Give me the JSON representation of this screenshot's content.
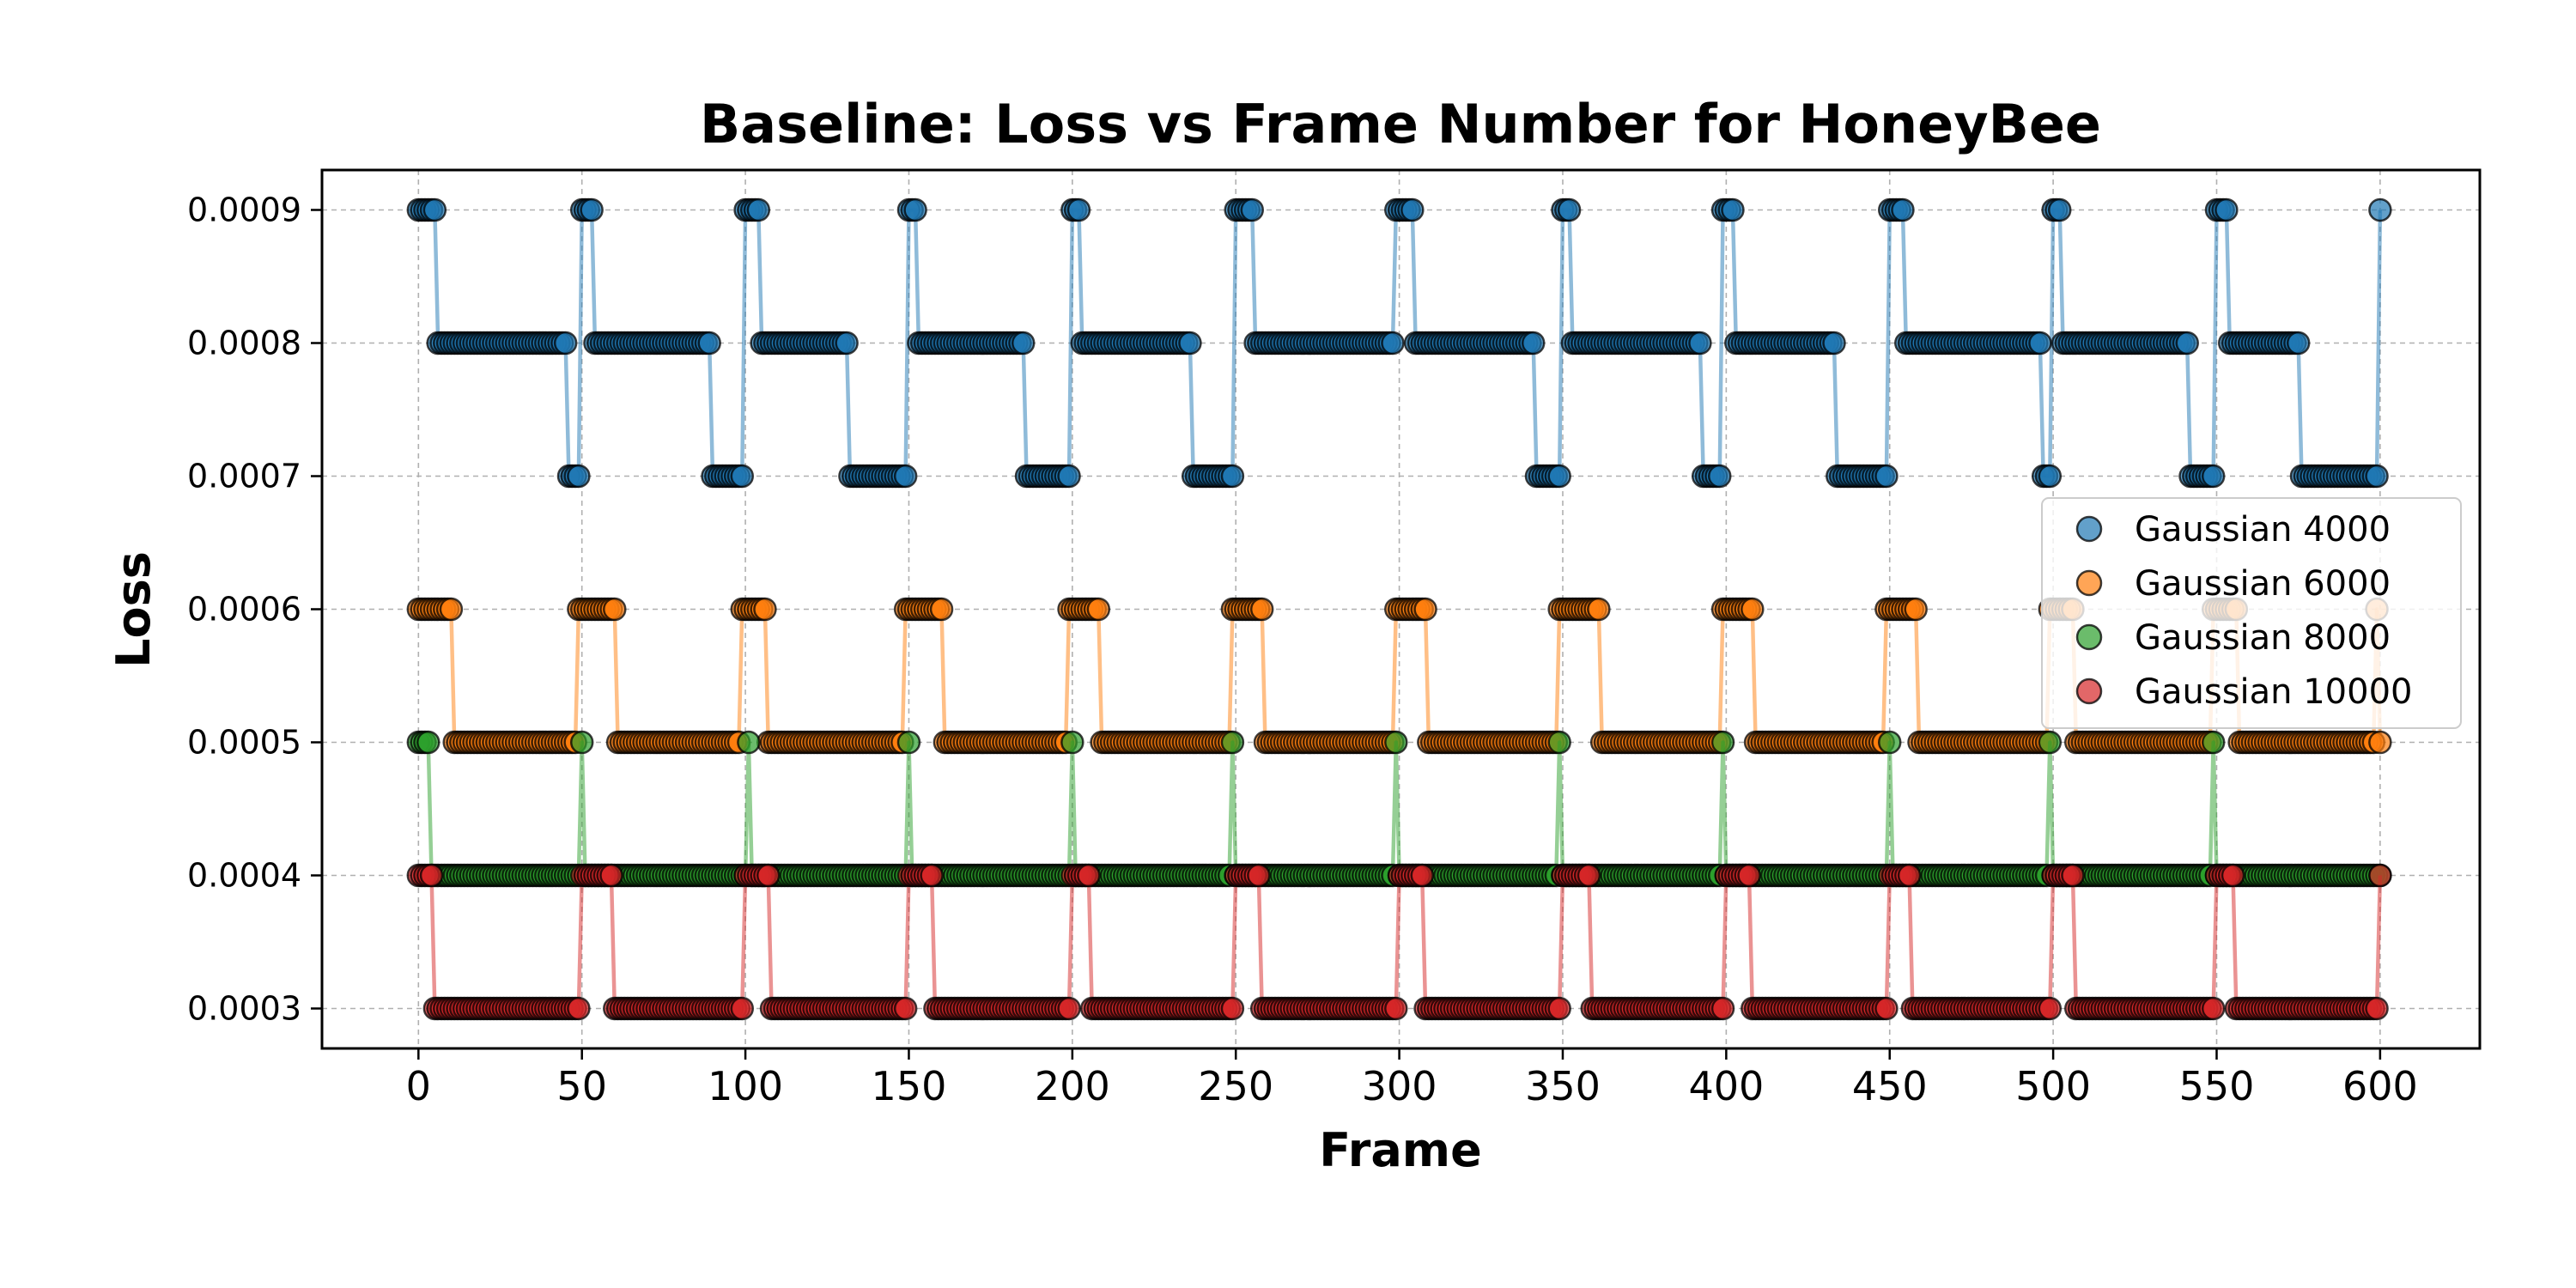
{
  "chart_data": {
    "type": "scatter",
    "title": "Baseline: Loss vs Frame Number for HoneyBee",
    "xlabel": "Frame",
    "ylabel": "Loss",
    "xlim": [
      -29.5,
      630.5
    ],
    "ylim": [
      0.00027,
      0.00093
    ],
    "xticks": [
      0,
      50,
      100,
      150,
      200,
      250,
      300,
      350,
      400,
      450,
      500,
      550,
      600
    ],
    "yticks": [
      0.0003,
      0.0004,
      0.0005,
      0.0006,
      0.0007,
      0.0008,
      0.0009
    ],
    "ytick_labels": [
      "0.0003",
      "0.0004",
      "0.0005",
      "0.0006",
      "0.0007",
      "0.0008",
      "0.0009"
    ],
    "grid": true,
    "legend_position": "center-right",
    "series": [
      {
        "name": "Gaussian 4000",
        "color": "#1f77b4",
        "segments": [
          [
            0,
            5,
            0.0009
          ],
          [
            6,
            45,
            0.0008
          ],
          [
            46,
            49,
            0.0007
          ],
          [
            50,
            53,
            0.0009
          ],
          [
            54,
            89,
            0.0008
          ],
          [
            90,
            99,
            0.0007
          ],
          [
            100,
            104,
            0.0009
          ],
          [
            105,
            131,
            0.0008
          ],
          [
            132,
            149,
            0.0007
          ],
          [
            150,
            152,
            0.0009
          ],
          [
            153,
            185,
            0.0008
          ],
          [
            186,
            199,
            0.0007
          ],
          [
            200,
            202,
            0.0009
          ],
          [
            203,
            236,
            0.0008
          ],
          [
            237,
            249,
            0.0007
          ],
          [
            250,
            255,
            0.0009
          ],
          [
            256,
            298,
            0.0008
          ],
          [
            299,
            304,
            0.0009
          ],
          [
            305,
            341,
            0.0008
          ],
          [
            342,
            349,
            0.0007
          ],
          [
            350,
            352,
            0.0009
          ],
          [
            353,
            392,
            0.0008
          ],
          [
            393,
            398,
            0.0007
          ],
          [
            399,
            402,
            0.0009
          ],
          [
            403,
            433,
            0.0008
          ],
          [
            434,
            449,
            0.0007
          ],
          [
            450,
            454,
            0.0009
          ],
          [
            455,
            496,
            0.0008
          ],
          [
            497,
            499,
            0.0007
          ],
          [
            500,
            502,
            0.0009
          ],
          [
            503,
            541,
            0.0008
          ],
          [
            542,
            549,
            0.0007
          ],
          [
            550,
            553,
            0.0009
          ],
          [
            554,
            575,
            0.0008
          ],
          [
            576,
            599,
            0.0007
          ],
          [
            600,
            600,
            0.0009
          ]
        ]
      },
      {
        "name": "Gaussian 6000",
        "color": "#ff7f0e",
        "segments": [
          [
            0,
            10,
            0.0006
          ],
          [
            11,
            48,
            0.0005
          ],
          [
            49,
            60,
            0.0006
          ],
          [
            61,
            98,
            0.0005
          ],
          [
            99,
            106,
            0.0006
          ],
          [
            107,
            148,
            0.0005
          ],
          [
            149,
            160,
            0.0006
          ],
          [
            161,
            198,
            0.0005
          ],
          [
            199,
            208,
            0.0006
          ],
          [
            209,
            248,
            0.0005
          ],
          [
            249,
            258,
            0.0006
          ],
          [
            259,
            298,
            0.0005
          ],
          [
            299,
            308,
            0.0006
          ],
          [
            309,
            348,
            0.0005
          ],
          [
            349,
            361,
            0.0006
          ],
          [
            362,
            398,
            0.0005
          ],
          [
            399,
            408,
            0.0006
          ],
          [
            409,
            448,
            0.0005
          ],
          [
            449,
            458,
            0.0006
          ],
          [
            459,
            498,
            0.0005
          ],
          [
            499,
            506,
            0.0006
          ],
          [
            507,
            548,
            0.0005
          ],
          [
            549,
            556,
            0.0006
          ],
          [
            557,
            598,
            0.0005
          ],
          [
            599,
            599,
            0.0006
          ],
          [
            600,
            600,
            0.0005
          ]
        ]
      },
      {
        "name": "Gaussian 8000",
        "color": "#2ca02c",
        "segments": [
          [
            0,
            3,
            0.0005
          ],
          [
            4,
            49,
            0.0004
          ],
          [
            50,
            50,
            0.0005
          ],
          [
            51,
            100,
            0.0004
          ],
          [
            101,
            101,
            0.0005
          ],
          [
            102,
            149,
            0.0004
          ],
          [
            150,
            150,
            0.0005
          ],
          [
            151,
            199,
            0.0004
          ],
          [
            200,
            200,
            0.0005
          ],
          [
            201,
            248,
            0.0004
          ],
          [
            249,
            249,
            0.0005
          ],
          [
            250,
            298,
            0.0004
          ],
          [
            299,
            299,
            0.0005
          ],
          [
            300,
            348,
            0.0004
          ],
          [
            349,
            349,
            0.0005
          ],
          [
            350,
            398,
            0.0004
          ],
          [
            399,
            399,
            0.0005
          ],
          [
            400,
            449,
            0.0004
          ],
          [
            450,
            450,
            0.0005
          ],
          [
            451,
            498,
            0.0004
          ],
          [
            499,
            499,
            0.0005
          ],
          [
            500,
            548,
            0.0004
          ],
          [
            549,
            549,
            0.0005
          ],
          [
            550,
            600,
            0.0004
          ]
        ]
      },
      {
        "name": "Gaussian 10000",
        "color": "#d62728",
        "segments": [
          [
            0,
            4,
            0.0004
          ],
          [
            5,
            49,
            0.0003
          ],
          [
            50,
            59,
            0.0004
          ],
          [
            60,
            99,
            0.0003
          ],
          [
            100,
            107,
            0.0004
          ],
          [
            108,
            149,
            0.0003
          ],
          [
            150,
            157,
            0.0004
          ],
          [
            158,
            199,
            0.0003
          ],
          [
            200,
            205,
            0.0004
          ],
          [
            206,
            249,
            0.0003
          ],
          [
            250,
            257,
            0.0004
          ],
          [
            258,
            299,
            0.0003
          ],
          [
            300,
            307,
            0.0004
          ],
          [
            308,
            349,
            0.0003
          ],
          [
            350,
            358,
            0.0004
          ],
          [
            359,
            399,
            0.0003
          ],
          [
            400,
            407,
            0.0004
          ],
          [
            408,
            449,
            0.0003
          ],
          [
            450,
            456,
            0.0004
          ],
          [
            457,
            499,
            0.0003
          ],
          [
            500,
            506,
            0.0004
          ],
          [
            507,
            549,
            0.0003
          ],
          [
            550,
            555,
            0.0004
          ],
          [
            556,
            599,
            0.0003
          ],
          [
            600,
            600,
            0.0004
          ]
        ]
      }
    ]
  }
}
